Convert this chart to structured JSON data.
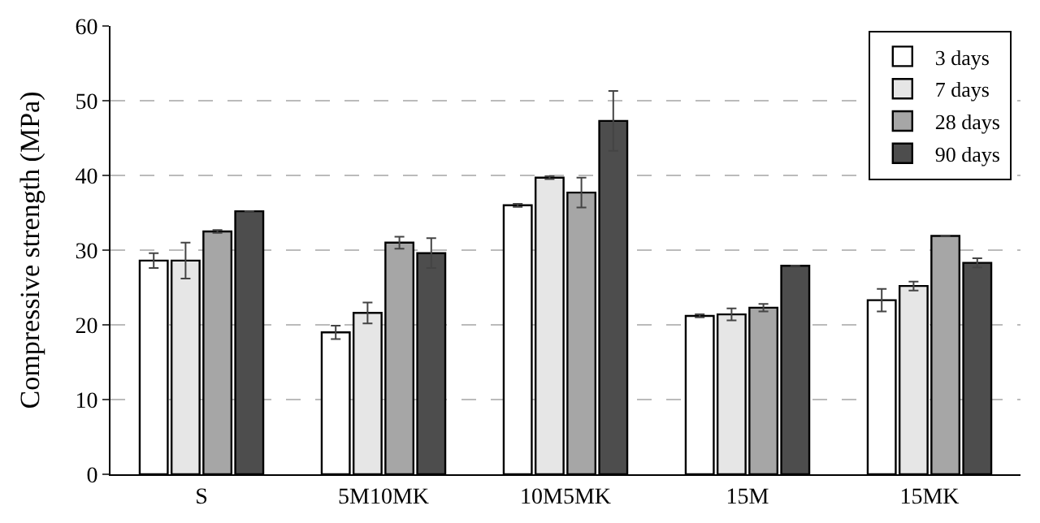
{
  "chart_data": {
    "type": "bar",
    "ylabel": "Compressive strength (MPa)",
    "categories": [
      "S",
      "5M10MK",
      "10M5MK",
      "15M",
      "15MK"
    ],
    "series": [
      {
        "name": "3 days",
        "color": "#ffffff",
        "values": [
          28.6,
          19,
          36,
          21.2,
          23.3
        ],
        "errors": [
          1,
          0.9,
          0.2,
          0.2,
          1.5
        ]
      },
      {
        "name": "7 days",
        "color": "#e6e6e6",
        "values": [
          28.6,
          21.6,
          39.7,
          21.4,
          25.2
        ],
        "errors": [
          2.4,
          1.4,
          0.2,
          0.8,
          0.6
        ]
      },
      {
        "name": "28 days",
        "color": "#a6a6a6",
        "values": [
          32.5,
          31,
          37.7,
          22.3,
          31.9
        ],
        "errors": [
          0.2,
          0.8,
          2,
          0.5,
          null
        ]
      },
      {
        "name": "90 days",
        "color": "#4d4d4d",
        "values": [
          35.2,
          29.6,
          47.3,
          27.9,
          28.3
        ],
        "errors": [
          null,
          2,
          4,
          null,
          0.6
        ]
      }
    ],
    "ylim": [
      0,
      60
    ],
    "yticks": [
      0,
      10,
      20,
      30,
      40,
      50,
      60
    ],
    "grid": "y",
    "legend": "top right"
  }
}
